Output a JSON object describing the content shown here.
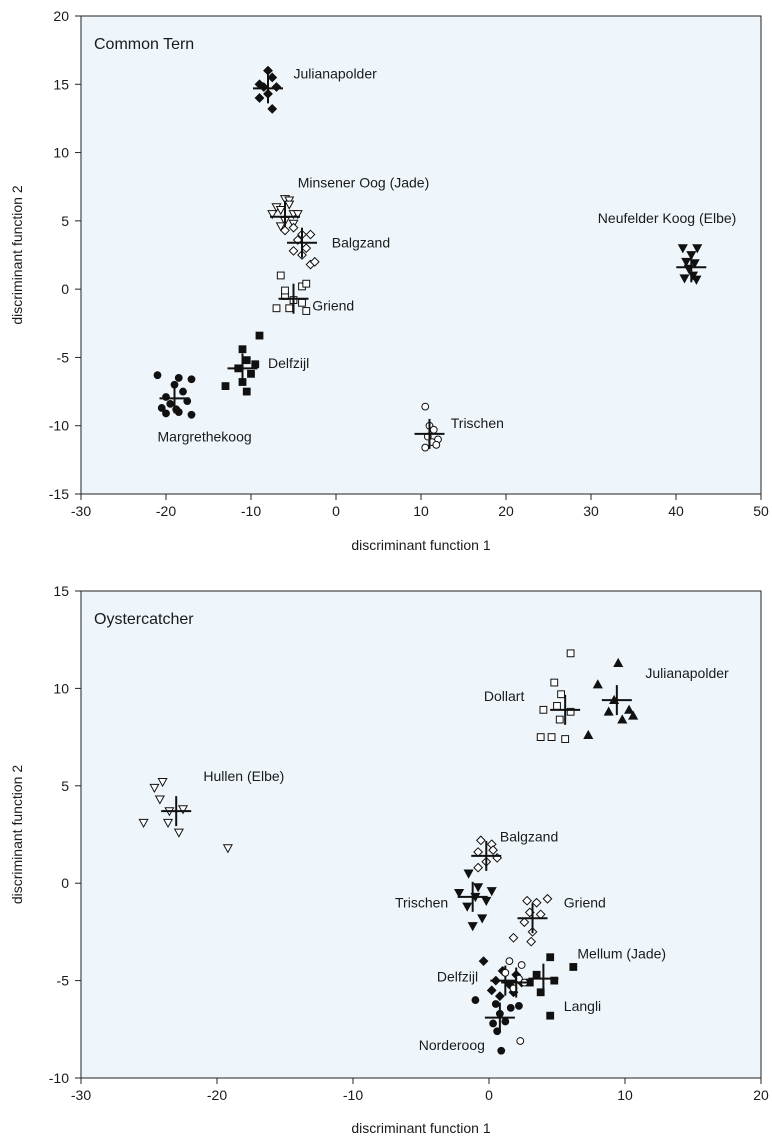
{
  "chart_data": [
    {
      "type": "scatter",
      "title": "Common Tern",
      "xlabel": "discriminant function 1",
      "ylabel": "discriminant function 2",
      "xlim": [
        -30,
        50
      ],
      "ylim": [
        -15,
        20
      ],
      "xticks": [
        -30,
        -20,
        -10,
        0,
        10,
        20,
        30,
        40,
        50
      ],
      "yticks": [
        -15,
        -10,
        -5,
        0,
        5,
        10,
        15,
        20
      ],
      "background": "#eef6fb",
      "series": [
        {
          "name": "Julianapolder",
          "marker": "diamond",
          "filled": true,
          "centroid": [
            -8,
            14.7
          ],
          "points": [
            [
              -8,
              16
            ],
            [
              -7.5,
              15.5
            ],
            [
              -9,
              15
            ],
            [
              -8.5,
              14.8
            ],
            [
              -7,
              14.8
            ],
            [
              -8,
              14.3
            ],
            [
              -9,
              14
            ],
            [
              -7.5,
              13.2
            ]
          ],
          "label_pos": [
            -5,
            15.8
          ],
          "label_anchor": "start"
        },
        {
          "name": "Minsener Oog (Jade)",
          "marker": "triangle-down",
          "filled": false,
          "centroid": [
            -6,
            5.3
          ],
          "points": [
            [
              -6,
              6.6
            ],
            [
              -5.5,
              6.5
            ],
            [
              -7,
              6
            ],
            [
              -6.5,
              5.8
            ],
            [
              -5,
              5.5
            ],
            [
              -7.5,
              5.5
            ],
            [
              -6,
              5
            ],
            [
              -5,
              4.8
            ],
            [
              -4.5,
              5.5
            ],
            [
              -6.5,
              4.6
            ],
            [
              -5.5,
              6.2
            ]
          ],
          "label_pos": [
            -4.5,
            7.8
          ],
          "label_anchor": "start"
        },
        {
          "name": "Balgzand",
          "marker": "diamond",
          "filled": false,
          "centroid": [
            -4,
            3.4
          ],
          "points": [
            [
              -5,
              4.5
            ],
            [
              -4,
              4
            ],
            [
              -3,
              4
            ],
            [
              -4.5,
              3.6
            ],
            [
              -3.5,
              3
            ],
            [
              -5,
              2.8
            ],
            [
              -4,
              2.5
            ],
            [
              -6,
              4.3
            ],
            [
              -3,
              1.8
            ],
            [
              -2.5,
              2
            ]
          ],
          "label_pos": [
            -0.5,
            3.4
          ],
          "label_anchor": "start"
        },
        {
          "name": "Griend",
          "marker": "square",
          "filled": false,
          "centroid": [
            -5,
            -0.7
          ],
          "points": [
            [
              -6.5,
              1
            ],
            [
              -4,
              0.2
            ],
            [
              -3.5,
              0.4
            ],
            [
              -6,
              -0.5
            ],
            [
              -5,
              -0.8
            ],
            [
              -4,
              -1
            ],
            [
              -7,
              -1.4
            ],
            [
              -5.5,
              -1.4
            ],
            [
              -3.5,
              -1.6
            ],
            [
              -6,
              -0.1
            ]
          ],
          "label_pos": [
            -2.8,
            -1.2
          ],
          "label_anchor": "start"
        },
        {
          "name": "Delfzijl",
          "marker": "square",
          "filled": true,
          "centroid": [
            -11,
            -5.8
          ],
          "points": [
            [
              -9,
              -3.4
            ],
            [
              -11,
              -4.4
            ],
            [
              -10.5,
              -5.2
            ],
            [
              -9.5,
              -5.5
            ],
            [
              -11.5,
              -5.8
            ],
            [
              -10,
              -6.2
            ],
            [
              -11,
              -6.8
            ],
            [
              -13,
              -7.1
            ],
            [
              -10.5,
              -7.5
            ]
          ],
          "label_pos": [
            -8,
            -5.4
          ],
          "label_anchor": "start"
        },
        {
          "name": "Margrethekoog",
          "marker": "circle",
          "filled": true,
          "centroid": [
            -19,
            -8
          ],
          "points": [
            [
              -21,
              -6.3
            ],
            [
              -18.5,
              -6.5
            ],
            [
              -17,
              -6.6
            ],
            [
              -19,
              -7
            ],
            [
              -18,
              -7.5
            ],
            [
              -20,
              -7.9
            ],
            [
              -17.5,
              -8.2
            ],
            [
              -19.5,
              -8.4
            ],
            [
              -20.5,
              -8.7
            ],
            [
              -18.5,
              -9
            ],
            [
              -20,
              -9.1
            ],
            [
              -17,
              -9.2
            ],
            [
              -18.8,
              -8.8
            ]
          ],
          "label_pos": [
            -21,
            -10.8
          ],
          "label_anchor": "start"
        },
        {
          "name": "Trischen",
          "marker": "circle",
          "filled": false,
          "centroid": [
            11,
            -10.6
          ],
          "points": [
            [
              10.5,
              -8.6
            ],
            [
              11,
              -10
            ],
            [
              11.5,
              -10.3
            ],
            [
              10.8,
              -10.8
            ],
            [
              12,
              -11
            ],
            [
              11.3,
              -11.2
            ],
            [
              10.5,
              -11.6
            ],
            [
              11.8,
              -11.4
            ]
          ],
          "label_pos": [
            13.5,
            -9.8
          ],
          "label_anchor": "start"
        },
        {
          "name": "Neufelder Koog (Elbe)",
          "marker": "triangle-down",
          "filled": true,
          "centroid": [
            41.8,
            1.6
          ],
          "points": [
            [
              40.8,
              3
            ],
            [
              42.5,
              3
            ],
            [
              41.8,
              2.5
            ],
            [
              41.2,
              2
            ],
            [
              42.2,
              1.9
            ],
            [
              41.5,
              1.5
            ],
            [
              42,
              1
            ],
            [
              41,
              0.8
            ],
            [
              42.4,
              0.7
            ]
          ],
          "label_pos": [
            30.8,
            5.2
          ],
          "label_anchor": "start"
        }
      ]
    },
    {
      "type": "scatter",
      "title": "Oystercatcher",
      "xlabel": "discriminant function 1",
      "ylabel": "discriminant function 2",
      "xlim": [
        -30,
        20
      ],
      "ylim": [
        -10,
        15
      ],
      "xticks": [
        -30,
        -20,
        -10,
        0,
        10,
        20
      ],
      "yticks": [
        -10,
        -5,
        0,
        5,
        10,
        15
      ],
      "background": "#eef6fb",
      "series": [
        {
          "name": "Dollart",
          "marker": "square",
          "filled": false,
          "centroid": [
            5.6,
            8.9
          ],
          "points": [
            [
              6,
              11.8
            ],
            [
              4.8,
              10.3
            ],
            [
              5.3,
              9.7
            ],
            [
              5,
              9.1
            ],
            [
              4,
              8.9
            ],
            [
              6,
              8.8
            ],
            [
              5.2,
              8.4
            ],
            [
              3.8,
              7.5
            ],
            [
              4.6,
              7.5
            ],
            [
              5.6,
              7.4
            ]
          ],
          "label_pos": [
            2.6,
            9.6
          ],
          "label_anchor": "end"
        },
        {
          "name": "Julianapolder",
          "marker": "triangle-up",
          "filled": true,
          "centroid": [
            9.4,
            9.4
          ],
          "points": [
            [
              9.5,
              11.3
            ],
            [
              8,
              10.2
            ],
            [
              9.2,
              9.4
            ],
            [
              10.3,
              8.9
            ],
            [
              9.8,
              8.4
            ],
            [
              10.6,
              8.6
            ],
            [
              7.3,
              7.6
            ],
            [
              8.8,
              8.8
            ]
          ],
          "label_pos": [
            11.5,
            10.8
          ],
          "label_anchor": "start"
        },
        {
          "name": "Hullen (Elbe)",
          "marker": "triangle-down",
          "filled": false,
          "centroid": [
            -23,
            3.7
          ],
          "points": [
            [
              -24,
              5.2
            ],
            [
              -24.6,
              4.9
            ],
            [
              -24.2,
              4.3
            ],
            [
              -23.5,
              3.7
            ],
            [
              -22.5,
              3.8
            ],
            [
              -25.4,
              3.1
            ],
            [
              -23.6,
              3.1
            ],
            [
              -22.8,
              2.6
            ],
            [
              -19.2,
              1.8
            ]
          ],
          "label_pos": [
            -21,
            5.5
          ],
          "label_anchor": "start"
        },
        {
          "name": "Balgzand",
          "marker": "diamond",
          "filled": false,
          "centroid": [
            -0.2,
            1.4
          ],
          "points": [
            [
              -0.6,
              2.2
            ],
            [
              0.2,
              2
            ],
            [
              -0.8,
              1.6
            ],
            [
              0.6,
              1.3
            ],
            [
              -0.2,
              1.1
            ],
            [
              -0.8,
              0.8
            ],
            [
              0.3,
              1.7
            ]
          ],
          "label_pos": [
            0.8,
            2.4
          ],
          "label_anchor": "start"
        },
        {
          "name": "Trischen",
          "marker": "triangle-down",
          "filled": true,
          "centroid": [
            -1.2,
            -0.7
          ],
          "points": [
            [
              -1.5,
              0.5
            ],
            [
              -2.2,
              -0.5
            ],
            [
              -0.8,
              -0.2
            ],
            [
              -1,
              -0.7
            ],
            [
              -0.2,
              -0.9
            ],
            [
              -1.6,
              -1.2
            ],
            [
              -0.5,
              -1.8
            ],
            [
              -1.2,
              -2.2
            ],
            [
              0.2,
              -0.4
            ]
          ],
          "label_pos": [
            -3,
            -1
          ],
          "label_anchor": "end"
        },
        {
          "name": "Griend",
          "marker": "diamond",
          "filled": false,
          "centroid": [
            3.2,
            -1.8
          ],
          "points": [
            [
              2.8,
              -0.9
            ],
            [
              3.5,
              -1
            ],
            [
              4.3,
              -0.8
            ],
            [
              3,
              -1.5
            ],
            [
              3.8,
              -1.6
            ],
            [
              2.6,
              -2
            ],
            [
              3.2,
              -2.5
            ],
            [
              1.8,
              -2.8
            ],
            [
              3.1,
              -3
            ]
          ],
          "label_pos": [
            5.5,
            -1
          ],
          "label_anchor": "start"
        },
        {
          "name": "Mellum (Jade)",
          "marker": "square",
          "filled": true,
          "centroid": [
            4,
            -4.9
          ],
          "points": [
            [
              4.5,
              -3.8
            ],
            [
              6.2,
              -4.3
            ],
            [
              3.5,
              -4.7
            ],
            [
              4.8,
              -5
            ],
            [
              3,
              -5.1
            ],
            [
              3.8,
              -5.6
            ],
            [
              4.5,
              -6.8
            ]
          ],
          "label_pos": [
            6.5,
            -3.6
          ],
          "label_anchor": "start"
        },
        {
          "name": "Delfzijl",
          "marker": "diamond",
          "filled": true,
          "centroid": [
            1.2,
            -5
          ],
          "points": [
            [
              -0.4,
              -4
            ],
            [
              1,
              -4.5
            ],
            [
              2,
              -4.7
            ],
            [
              0.5,
              -5
            ],
            [
              1.5,
              -5.2
            ],
            [
              2.4,
              -5.1
            ],
            [
              0.2,
              -5.5
            ],
            [
              1.8,
              -5.6
            ],
            [
              0.8,
              -5.8
            ]
          ],
          "label_pos": [
            -0.8,
            -4.8
          ],
          "label_anchor": "end"
        },
        {
          "name": "Langli",
          "marker": "circle",
          "filled": false,
          "centroid": [
            2,
            -5.1
          ],
          "points": [
            [
              1.5,
              -4
            ],
            [
              2.4,
              -4.2
            ],
            [
              1.2,
              -4.6
            ],
            [
              2.2,
              -4.9
            ],
            [
              1.8,
              -5.4
            ],
            [
              2.6,
              -5.1
            ],
            [
              2.3,
              -8.1
            ]
          ],
          "label_pos": [
            5.5,
            -6.3
          ],
          "label_anchor": "start"
        },
        {
          "name": "Norderoog",
          "marker": "circle",
          "filled": true,
          "centroid": [
            0.8,
            -6.9
          ],
          "points": [
            [
              -1,
              -6
            ],
            [
              0.5,
              -6.2
            ],
            [
              1.6,
              -6.4
            ],
            [
              0.8,
              -6.7
            ],
            [
              0.3,
              -7.2
            ],
            [
              1.2,
              -7.1
            ],
            [
              0.6,
              -7.6
            ],
            [
              0.9,
              -8.6
            ],
            [
              2.2,
              -6.3
            ]
          ],
          "label_pos": [
            -0.3,
            -8.3
          ],
          "label_anchor": "end"
        }
      ]
    }
  ]
}
